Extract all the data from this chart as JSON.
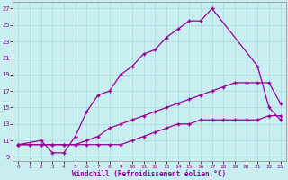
{
  "xlabel": "Windchill (Refroidissement éolien,°C)",
  "bg_color": "#c8eef0",
  "line_color": "#990099",
  "grid_color": "#a8d8dc",
  "xlim_min": -0.5,
  "xlim_max": 23.5,
  "ylim_min": 8.5,
  "ylim_max": 27.8,
  "yticks": [
    9,
    11,
    13,
    15,
    17,
    19,
    21,
    23,
    25,
    27
  ],
  "xticks": [
    0,
    1,
    2,
    3,
    4,
    5,
    6,
    7,
    8,
    9,
    10,
    11,
    12,
    13,
    14,
    15,
    16,
    17,
    18,
    19,
    20,
    21,
    22,
    23
  ],
  "line_top_x": [
    0,
    2,
    3,
    4,
    5,
    6,
    7,
    8,
    9,
    10,
    11,
    12,
    13,
    14,
    15,
    16,
    17,
    21,
    22,
    23
  ],
  "line_top_y": [
    10.5,
    11.0,
    9.5,
    9.5,
    11.5,
    14.5,
    16.5,
    17.0,
    19.0,
    20.0,
    21.5,
    22.0,
    23.5,
    24.5,
    25.5,
    25.5,
    27.0,
    20.0,
    15.0,
    13.5
  ],
  "line_mid_x": [
    0,
    1,
    2,
    3,
    4,
    5,
    6,
    7,
    8,
    9,
    10,
    11,
    12,
    13,
    14,
    15,
    16,
    17,
    18,
    19,
    20,
    21,
    22,
    23
  ],
  "line_mid_y": [
    10.5,
    10.5,
    10.5,
    10.5,
    10.5,
    10.5,
    11.0,
    11.5,
    12.5,
    13.0,
    13.5,
    14.0,
    14.5,
    15.0,
    15.5,
    16.0,
    16.5,
    17.0,
    17.5,
    18.0,
    18.0,
    18.0,
    18.0,
    15.5
  ],
  "line_bot_x": [
    0,
    1,
    2,
    3,
    4,
    5,
    6,
    7,
    8,
    9,
    10,
    11,
    12,
    13,
    14,
    15,
    16,
    17,
    18,
    19,
    20,
    21,
    22,
    23
  ],
  "line_bot_y": [
    10.5,
    10.5,
    10.5,
    10.5,
    10.5,
    10.5,
    10.5,
    10.5,
    10.5,
    10.5,
    11.0,
    11.5,
    12.0,
    12.5,
    13.0,
    13.0,
    13.5,
    13.5,
    13.5,
    13.5,
    13.5,
    13.5,
    14.0,
    14.0
  ]
}
